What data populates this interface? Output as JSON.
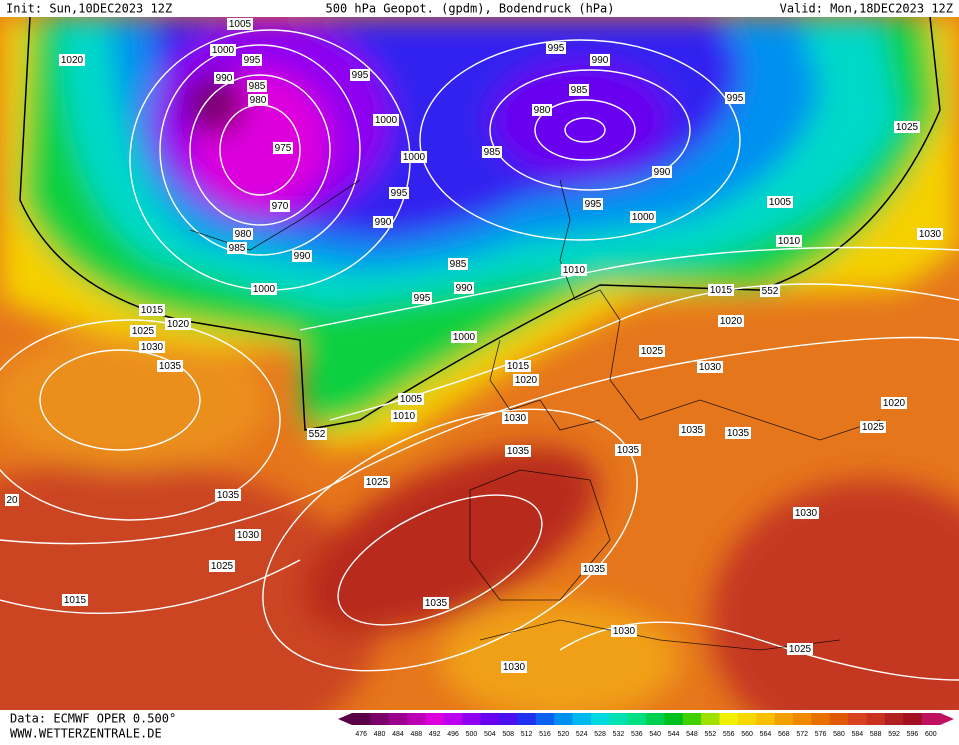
{
  "header": {
    "init": "Init: Sun,10DEC2023 12Z",
    "title": "500 hPa Geopot. (gpdm), Bodendruck (hPa)",
    "valid": "Valid: Mon,18DEC2023 12Z"
  },
  "footer": {
    "source": "Data: ECMWF OPER 0.500°",
    "site": "WWW.WETTERZENTRALE.DE"
  },
  "colorbar": {
    "levels": [
      476,
      480,
      484,
      488,
      492,
      496,
      500,
      504,
      508,
      512,
      516,
      520,
      524,
      528,
      532,
      536,
      540,
      544,
      548,
      552,
      556,
      560,
      564,
      568,
      572,
      576,
      580,
      584,
      588,
      592,
      596,
      600
    ],
    "colors": [
      "#5a0046",
      "#7a006a",
      "#99008c",
      "#bb00b4",
      "#dd00dd",
      "#bb00f0",
      "#9000f0",
      "#6a00f0",
      "#4a10f0",
      "#2030f0",
      "#1060f0",
      "#0090f0",
      "#00b8f0",
      "#00d8e0",
      "#00e0b0",
      "#00e080",
      "#00d050",
      "#00c020",
      "#40d000",
      "#a0e000",
      "#f0f000",
      "#f8d800",
      "#f8c000",
      "#f0a000",
      "#f08800",
      "#e87000",
      "#e05800",
      "#d84020",
      "#c83020",
      "#b02020",
      "#a01020",
      "#c01060"
    ]
  },
  "isobar_labels": [
    "1005",
    "1000",
    "995",
    "990",
    "985",
    "980",
    "975",
    "970",
    "980",
    "985",
    "990",
    "1000",
    "995",
    "1000",
    "1000",
    "995",
    "990",
    "985",
    "990",
    "995",
    "995",
    "990",
    "985",
    "980",
    "985",
    "995",
    "990",
    "995",
    "1000",
    "1005",
    "1010",
    "1025",
    "1030",
    "1020",
    "1015",
    "1020",
    "1025",
    "1030",
    "1035",
    "1010",
    "1015",
    "1020",
    "1025",
    "1015",
    "1020",
    "1030",
    "1000",
    "1005",
    "1010",
    "1030",
    "1035",
    "1035",
    "1035",
    "1035",
    "1020",
    "1025",
    "1025",
    "1035",
    "1030",
    "1025",
    "1030",
    "1035",
    "1035",
    "1030",
    "1030",
    "1025",
    "1015",
    "20",
    "552",
    "552"
  ]
}
